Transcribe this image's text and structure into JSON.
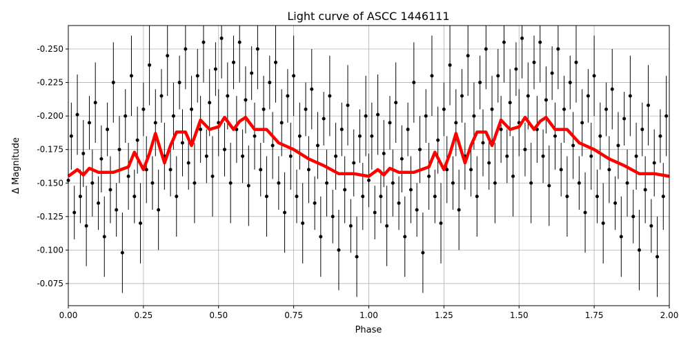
{
  "chart_data": {
    "type": "scatter",
    "title": "Light curve of ASCC 1446111",
    "xlabel": "Phase",
    "ylabel": "Δ Magnitude",
    "xlim": [
      0.0,
      2.0
    ],
    "ylim": [
      -0.2675,
      -0.0585
    ],
    "y_inverted": true,
    "grid": true,
    "xticks": [
      "0.00",
      "0.25",
      "0.50",
      "0.75",
      "1.00",
      "1.25",
      "1.50",
      "1.75",
      "2.00"
    ],
    "yticks": [
      "-0.250",
      "-0.225",
      "-0.200",
      "-0.175",
      "-0.150",
      "-0.125",
      "-0.100",
      "-0.075"
    ],
    "phase_cycles_shown": 2,
    "colors": {
      "points": "#000000",
      "model": "#ff0000",
      "grid": "#b0b0b0"
    },
    "series": [
      {
        "kind": "errorbar-points",
        "points_phase_mag_err": [
          [
            0.0,
            -0.152,
            0.02
          ],
          [
            0.01,
            -0.185,
            0.025
          ],
          [
            0.02,
            -0.128,
            0.02
          ],
          [
            0.03,
            -0.201,
            0.03
          ],
          [
            0.04,
            -0.14,
            0.02
          ],
          [
            0.05,
            -0.172,
            0.025
          ],
          [
            0.06,
            -0.118,
            0.03
          ],
          [
            0.07,
            -0.195,
            0.02
          ],
          [
            0.08,
            -0.15,
            0.025
          ],
          [
            0.09,
            -0.21,
            0.03
          ],
          [
            0.1,
            -0.135,
            0.02
          ],
          [
            0.11,
            -0.168,
            0.025
          ],
          [
            0.12,
            -0.11,
            0.03
          ],
          [
            0.13,
            -0.19,
            0.02
          ],
          [
            0.14,
            -0.145,
            0.025
          ],
          [
            0.15,
            -0.225,
            0.03
          ],
          [
            0.16,
            -0.13,
            0.02
          ],
          [
            0.17,
            -0.175,
            0.025
          ],
          [
            0.18,
            -0.098,
            0.03
          ],
          [
            0.19,
            -0.2,
            0.02
          ],
          [
            0.2,
            -0.155,
            0.025
          ],
          [
            0.21,
            -0.23,
            0.03
          ],
          [
            0.22,
            -0.14,
            0.02
          ],
          [
            0.23,
            -0.182,
            0.025
          ],
          [
            0.24,
            -0.12,
            0.03
          ],
          [
            0.25,
            -0.205,
            0.02
          ],
          [
            0.26,
            -0.16,
            0.025
          ],
          [
            0.27,
            -0.238,
            0.03
          ],
          [
            0.28,
            -0.15,
            0.02
          ],
          [
            0.29,
            -0.195,
            0.025
          ],
          [
            0.3,
            -0.13,
            0.03
          ],
          [
            0.31,
            -0.215,
            0.02
          ],
          [
            0.32,
            -0.17,
            0.025
          ],
          [
            0.33,
            -0.245,
            0.03
          ],
          [
            0.34,
            -0.16,
            0.02
          ],
          [
            0.35,
            -0.2,
            0.025
          ],
          [
            0.36,
            -0.14,
            0.03
          ],
          [
            0.37,
            -0.225,
            0.02
          ],
          [
            0.38,
            -0.18,
            0.025
          ],
          [
            0.39,
            -0.25,
            0.03
          ],
          [
            0.4,
            -0.165,
            0.02
          ],
          [
            0.41,
            -0.205,
            0.025
          ],
          [
            0.42,
            -0.15,
            0.03
          ],
          [
            0.43,
            -0.23,
            0.02
          ],
          [
            0.44,
            -0.19,
            0.025
          ],
          [
            0.45,
            -0.255,
            0.03
          ],
          [
            0.46,
            -0.17,
            0.02
          ],
          [
            0.47,
            -0.21,
            0.025
          ],
          [
            0.48,
            -0.155,
            0.03
          ],
          [
            0.49,
            -0.235,
            0.02
          ],
          [
            0.5,
            -0.195,
            0.025
          ],
          [
            0.51,
            -0.258,
            0.03
          ],
          [
            0.52,
            -0.175,
            0.02
          ],
          [
            0.53,
            -0.215,
            0.025
          ],
          [
            0.54,
            -0.15,
            0.03
          ],
          [
            0.55,
            -0.24,
            0.02
          ],
          [
            0.56,
            -0.19,
            0.025
          ],
          [
            0.57,
            -0.255,
            0.03
          ],
          [
            0.58,
            -0.17,
            0.02
          ],
          [
            0.59,
            -0.212,
            0.025
          ],
          [
            0.6,
            -0.148,
            0.03
          ],
          [
            0.61,
            -0.232,
            0.02
          ],
          [
            0.62,
            -0.185,
            0.025
          ],
          [
            0.63,
            -0.25,
            0.03
          ],
          [
            0.64,
            -0.16,
            0.02
          ],
          [
            0.65,
            -0.205,
            0.025
          ],
          [
            0.66,
            -0.14,
            0.03
          ],
          [
            0.67,
            -0.225,
            0.02
          ],
          [
            0.68,
            -0.178,
            0.025
          ],
          [
            0.69,
            -0.24,
            0.03
          ],
          [
            0.7,
            -0.15,
            0.02
          ],
          [
            0.71,
            -0.195,
            0.025
          ],
          [
            0.72,
            -0.128,
            0.03
          ],
          [
            0.73,
            -0.215,
            0.02
          ],
          [
            0.74,
            -0.17,
            0.025
          ],
          [
            0.75,
            -0.23,
            0.03
          ],
          [
            0.76,
            -0.14,
            0.02
          ],
          [
            0.77,
            -0.185,
            0.025
          ],
          [
            0.78,
            -0.12,
            0.03
          ],
          [
            0.79,
            -0.205,
            0.02
          ],
          [
            0.8,
            -0.16,
            0.025
          ],
          [
            0.81,
            -0.22,
            0.03
          ],
          [
            0.82,
            -0.135,
            0.02
          ],
          [
            0.83,
            -0.178,
            0.025
          ],
          [
            0.84,
            -0.11,
            0.03
          ],
          [
            0.85,
            -0.198,
            0.02
          ],
          [
            0.86,
            -0.15,
            0.025
          ],
          [
            0.87,
            -0.215,
            0.03
          ],
          [
            0.88,
            -0.125,
            0.02
          ],
          [
            0.89,
            -0.17,
            0.025
          ],
          [
            0.9,
            -0.1,
            0.03
          ],
          [
            0.91,
            -0.19,
            0.02
          ],
          [
            0.92,
            -0.145,
            0.025
          ],
          [
            0.93,
            -0.208,
            0.03
          ],
          [
            0.94,
            -0.118,
            0.02
          ],
          [
            0.95,
            -0.165,
            0.025
          ],
          [
            0.96,
            -0.095,
            0.03
          ],
          [
            0.97,
            -0.185,
            0.02
          ],
          [
            0.98,
            -0.14,
            0.025
          ],
          [
            0.99,
            -0.2,
            0.03
          ]
        ]
      },
      {
        "kind": "model-line",
        "phase": [
          0.0,
          0.03,
          0.05,
          0.07,
          0.1,
          0.15,
          0.2,
          0.22,
          0.25,
          0.27,
          0.29,
          0.32,
          0.34,
          0.36,
          0.39,
          0.41,
          0.44,
          0.47,
          0.5,
          0.52,
          0.55,
          0.57,
          0.59,
          0.62,
          0.66,
          0.7,
          0.75,
          0.8,
          0.85,
          0.9,
          0.95,
          1.0
        ],
        "mag": [
          -0.155,
          -0.16,
          -0.156,
          -0.161,
          -0.158,
          -0.158,
          -0.162,
          -0.173,
          -0.16,
          -0.172,
          -0.187,
          -0.165,
          -0.178,
          -0.188,
          -0.188,
          -0.178,
          -0.197,
          -0.19,
          -0.192,
          -0.199,
          -0.19,
          -0.196,
          -0.199,
          -0.19,
          -0.19,
          -0.18,
          -0.175,
          -0.168,
          -0.163,
          -0.157,
          -0.157,
          -0.155
        ]
      }
    ]
  }
}
